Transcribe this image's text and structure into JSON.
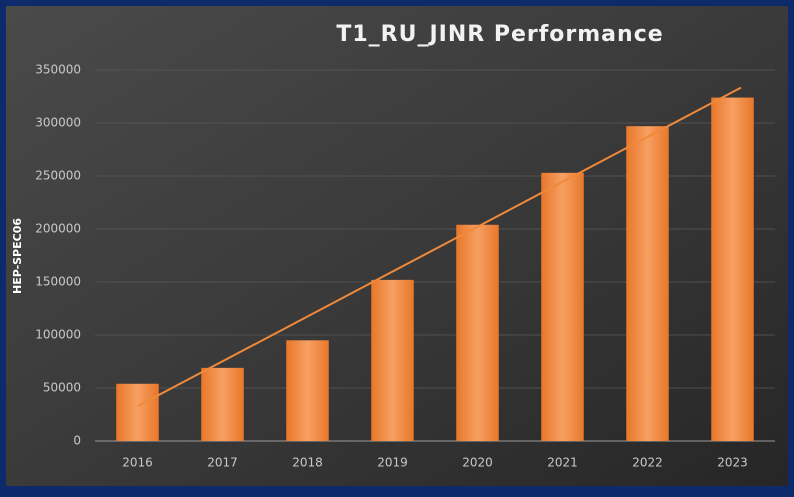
{
  "chart_data": {
    "type": "bar",
    "title": "T1_RU_JINR Performance",
    "y_label": "HEP-SPEC06",
    "categories": [
      "2016",
      "2017",
      "2018",
      "2019",
      "2020",
      "2021",
      "2022",
      "2023"
    ],
    "values": [
      54000,
      69000,
      95000,
      152000,
      204000,
      253000,
      297000,
      324000
    ],
    "color": "#f08a3a",
    "trendline": "linear",
    "ylim": [
      0,
      350000
    ],
    "yticks": [
      0,
      50000,
      100000,
      150000,
      200000,
      250000,
      300000,
      350000
    ],
    "grid": true
  }
}
